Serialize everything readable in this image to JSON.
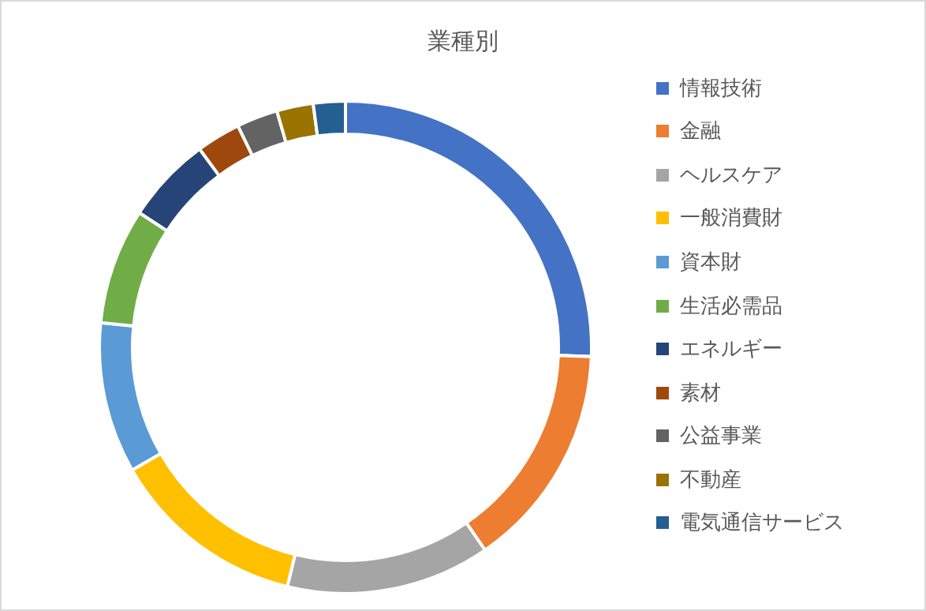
{
  "chart_data": {
    "type": "donut",
    "title": "業種別",
    "categories": [
      "情報技術",
      "金融",
      "ヘルスケア",
      "一般消費財",
      "資本財",
      "生活必需品",
      "エネルギー",
      "素材",
      "公益事業",
      "不動産",
      "電気通信サービス"
    ],
    "values": [
      25.6,
      14.8,
      13.4,
      12.9,
      9.9,
      7.6,
      5.7,
      2.9,
      2.7,
      2.4,
      2.1
    ],
    "colors": [
      "#4472c4",
      "#ed7d31",
      "#a5a5a5",
      "#ffc000",
      "#5b9bd5",
      "#70ad47",
      "#264478",
      "#9e480e",
      "#636363",
      "#997300",
      "#255e91"
    ],
    "legend": "right"
  }
}
